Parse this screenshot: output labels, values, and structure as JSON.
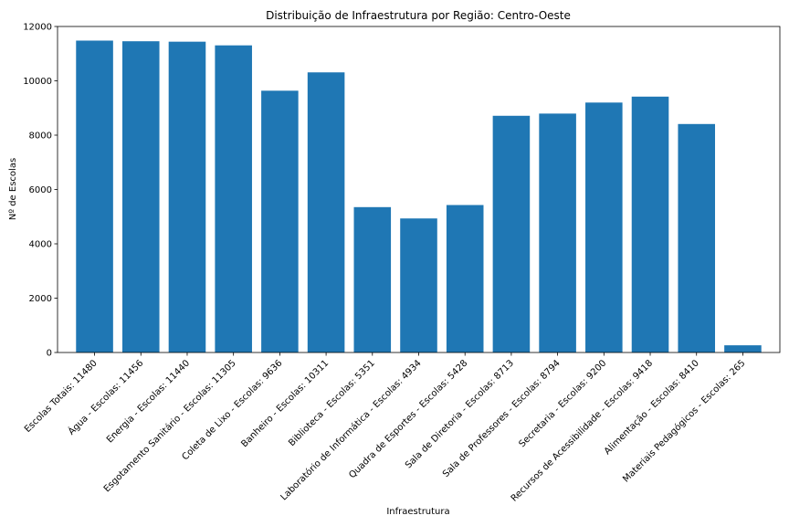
{
  "chart_data": {
    "type": "bar",
    "title": "Distribuição de Infraestrutura por Região: Centro-Oeste",
    "xlabel": "Infraestrutura",
    "ylabel": "Nº de Escolas",
    "ylim": [
      0,
      12000
    ],
    "yticks": [
      0,
      2000,
      4000,
      6000,
      8000,
      10000,
      12000
    ],
    "categories": [
      "Escolas Totais: 11480",
      "Água - Escolas: 11456",
      "Energia - Escolas: 11440",
      "Esgotamento Sanitário - Escolas: 11305",
      "Coleta de Lixo - Escolas: 9636",
      "Banheiro - Escolas: 10311",
      "Biblioteca - Escolas: 5351",
      "Laboratório de Informática - Escolas: 4934",
      "Quadra de Esportes - Escolas: 5428",
      "Sala de Diretoria - Escolas: 8713",
      "Sala de Professores - Escolas: 8794",
      "Secretaria - Escolas: 9200",
      "Recursos de Acessibilidade - Escolas: 9418",
      "Alimentação - Escolas: 8410",
      "Materiais Pedagógicos - Escolas: 265"
    ],
    "values": [
      11480,
      11456,
      11440,
      11305,
      9636,
      10311,
      5351,
      4934,
      5428,
      8713,
      8794,
      9200,
      9418,
      8410,
      265
    ],
    "bar_color": "#1f77b4",
    "grid": false,
    "legend": "none"
  }
}
